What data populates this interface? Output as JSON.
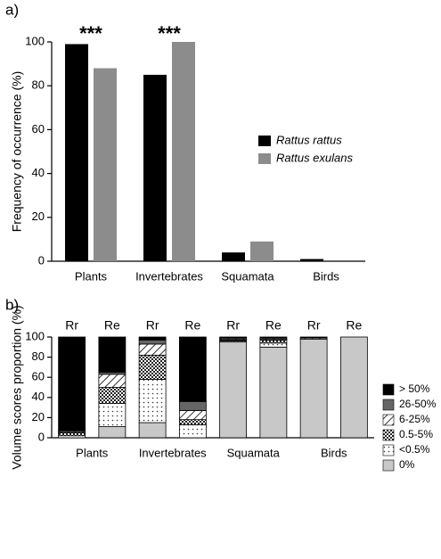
{
  "chart_data": [
    {
      "type": "bar",
      "panel_label": "a)",
      "ylabel": "Frequency of occurrence (%)",
      "categories": [
        "Plants",
        "Invertebrates",
        "Squamata",
        "Birds"
      ],
      "series": [
        {
          "name": "Rattus rattus",
          "color": "#000000",
          "values": [
            99,
            85,
            4,
            1
          ]
        },
        {
          "name": "Rattus exulans",
          "color": "#8c8c8c",
          "values": [
            88,
            100,
            9,
            0
          ]
        }
      ],
      "annotations": [
        {
          "text": "***",
          "x": "Plants"
        },
        {
          "text": "***",
          "x": "Invertebrates"
        }
      ],
      "ylim": [
        0,
        100
      ],
      "yticks": [
        0,
        20,
        40,
        60,
        80,
        100
      ],
      "grid": false
    },
    {
      "type": "stacked_bar",
      "panel_label": "b)",
      "ylabel": "Volume scores proportion (%)",
      "categories": [
        "Rr",
        "Re",
        "Rr",
        "Re",
        "Rr",
        "Re",
        "Rr",
        "Re"
      ],
      "groups": [
        "Plants",
        "Invertebrates",
        "Squamata",
        "Birds"
      ],
      "series": [
        {
          "name": "0%",
          "color": "#c8c8c8",
          "values": [
            0,
            11,
            15,
            0,
            95,
            90,
            98,
            100
          ]
        },
        {
          "name": "<0.5%",
          "color": "#ffffff",
          "pattern": "dots",
          "values": [
            2,
            23,
            43,
            13,
            1,
            4,
            0,
            0
          ]
        },
        {
          "name": "0.5-5%",
          "color": "#ffffff",
          "pattern": "checker",
          "values": [
            3,
            16,
            24,
            5,
            1,
            3,
            0,
            0
          ]
        },
        {
          "name": "6-25%",
          "color": "#ffffff",
          "pattern": "hatch",
          "values": [
            1,
            13,
            11,
            9,
            1,
            1,
            1,
            0
          ]
        },
        {
          "name": "26-50%",
          "color": "#666666",
          "values": [
            1,
            2,
            4,
            9,
            1,
            1,
            0,
            0
          ]
        },
        {
          "name": "> 50%",
          "color": "#000000",
          "values": [
            93,
            35,
            3,
            64,
            1,
            1,
            1,
            0
          ]
        }
      ],
      "ylim": [
        0,
        100
      ],
      "yticks": [
        0,
        20,
        40,
        60,
        80,
        100
      ],
      "grid": false
    }
  ]
}
